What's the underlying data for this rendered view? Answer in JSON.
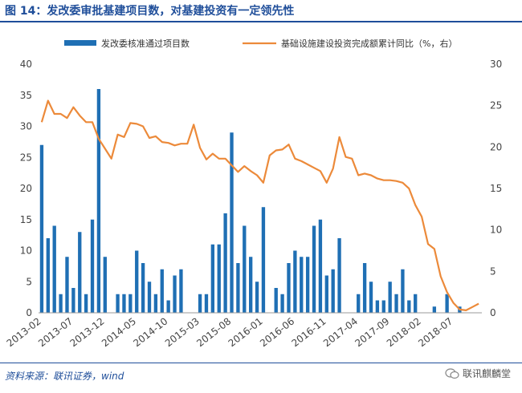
{
  "title": "图 14：发改委审批基建项目数，对基建投资有一定领先性",
  "source": "资料来源：联讯证券，wind",
  "watermark": "联讯麒麟堂",
  "chart_data": {
    "type": "bar+line",
    "categories": [
      "2013-02",
      "2013-03",
      "2013-04",
      "2013-05",
      "2013-06",
      "2013-07",
      "2013-08",
      "2013-09",
      "2013-10",
      "2013-11",
      "2013-12",
      "2014-01",
      "2014-02",
      "2014-03",
      "2014-04",
      "2014-05",
      "2014-06",
      "2014-07",
      "2014-08",
      "2014-09",
      "2014-10",
      "2014-11",
      "2014-12",
      "2015-01",
      "2015-02",
      "2015-03",
      "2015-04",
      "2015-05",
      "2015-06",
      "2015-07",
      "2015-08",
      "2015-09",
      "2015-10",
      "2015-11",
      "2015-12",
      "2016-01",
      "2016-02",
      "2016-03",
      "2016-04",
      "2016-05",
      "2016-06",
      "2016-07",
      "2016-08",
      "2016-09",
      "2016-10",
      "2016-11",
      "2016-12",
      "2017-01",
      "2017-02",
      "2017-03",
      "2017-04",
      "2017-05",
      "2017-06",
      "2017-07",
      "2017-08",
      "2017-09",
      "2017-10",
      "2017-11",
      "2017-12",
      "2018-01",
      "2018-02",
      "2018-03",
      "2018-04",
      "2018-05",
      "2018-06",
      "2018-07",
      "2018-08",
      "2018-09",
      "2018-10",
      "2018-11"
    ],
    "x_tick_labels": [
      "2013-02",
      "2013-07",
      "2013-12",
      "2014-05",
      "2014-10",
      "2015-03",
      "2015-08",
      "2016-01",
      "2016-06",
      "2016-11",
      "2017-04",
      "2017-09",
      "2018-02",
      "2018-07"
    ],
    "series": [
      {
        "name": "发改委核准通过项目数",
        "type": "bar",
        "axis": "left",
        "color": "#1f6fb4",
        "values": [
          27,
          12,
          14,
          3,
          9,
          4,
          13,
          3,
          15,
          36,
          9,
          null,
          3,
          3,
          3,
          10,
          8,
          5,
          3,
          7,
          2,
          6,
          7,
          null,
          null,
          3,
          3,
          11,
          11,
          16,
          29,
          8,
          14,
          9,
          5,
          17,
          null,
          4,
          3,
          8,
          10,
          9,
          9,
          14,
          15,
          6,
          7,
          12,
          null,
          null,
          3,
          8,
          5,
          2,
          2,
          5,
          3,
          7,
          2,
          3,
          null,
          null,
          1,
          null,
          3,
          null,
          1,
          null,
          null,
          null
        ]
      },
      {
        "name": "基础设施建设投资完成额累计同比（%，右）",
        "type": "line",
        "axis": "right",
        "color": "#ec8a3a",
        "values": [
          23,
          25.6,
          24,
          24,
          23.5,
          24.8,
          23.8,
          23,
          23,
          21,
          19.8,
          18.6,
          21.5,
          21.2,
          22.9,
          22.8,
          22.5,
          21.1,
          21.3,
          20.6,
          20.5,
          20.2,
          20.4,
          20.4,
          22.7,
          19.9,
          18.5,
          19.2,
          18.6,
          18.6,
          17.8,
          17,
          17.7,
          17.1,
          16.6,
          15.7,
          19,
          19.6,
          19.7,
          20.3,
          18.6,
          18.3,
          17.9,
          17.5,
          17.1,
          15.7,
          17.4,
          21.2,
          18.8,
          18.6,
          16.6,
          16.8,
          16.6,
          16.2,
          16,
          16,
          15.9,
          15.7,
          15,
          13,
          11.6,
          8.3,
          7.7,
          4.4,
          2.5,
          1.2,
          0.4,
          0.3,
          0.7,
          1.1
        ]
      }
    ],
    "y_left": {
      "min": 0,
      "max": 40,
      "ticks": [
        0,
        5,
        10,
        15,
        20,
        25,
        30,
        35,
        40
      ]
    },
    "y_right": {
      "min": 0,
      "max": 30,
      "ticks": [
        0,
        5,
        10,
        15,
        20,
        25,
        30
      ]
    },
    "legend_position": "top",
    "grid": false
  }
}
